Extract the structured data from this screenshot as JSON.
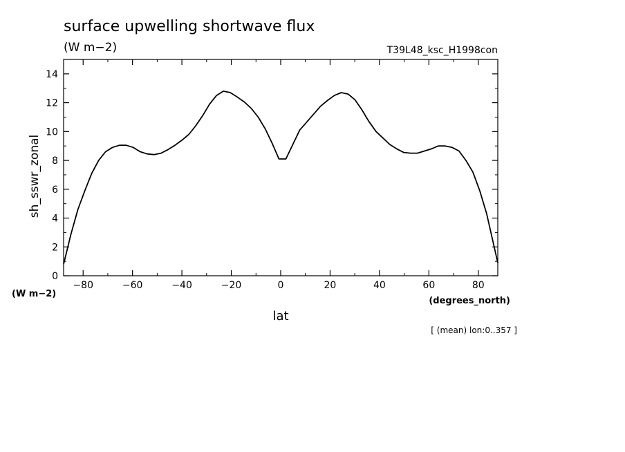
{
  "chart_data": {
    "type": "line",
    "title": "surface upwelling shortwave flux",
    "subtitle": "(W m−2)",
    "run_label": "T39L48_ksc_H1998con",
    "xlabel": "lat",
    "x_units": "(degrees_north)",
    "ylabel": "sh_sswr_zonal",
    "y_units": "(W m−2)",
    "footnote": "[ (mean) lon:0..357 ]",
    "xlim": [
      -87.9,
      87.9
    ],
    "ylim": [
      0,
      15
    ],
    "x_ticks": [
      -80,
      -60,
      -40,
      -20,
      0,
      20,
      40,
      60,
      80
    ],
    "x_tick_labels": [
      "−80",
      "−60",
      "−40",
      "−20",
      "0",
      "20",
      "40",
      "60",
      "80"
    ],
    "y_ticks": [
      0,
      2,
      4,
      6,
      8,
      10,
      12,
      14
    ],
    "y_tick_labels": [
      "0",
      "2",
      "4",
      "6",
      "8",
      "10",
      "12",
      "14"
    ],
    "grid": false,
    "series": [
      {
        "x": [
          -87.9,
          -84.9,
          -82.1,
          -79.3,
          -76.5,
          -73.7,
          -70.9,
          -68.1,
          -65.3,
          -62.5,
          -59.7,
          -56.9,
          -54.1,
          -51.3,
          -48.4,
          -45.6,
          -42.8,
          -40.0,
          -37.2,
          -34.4,
          -31.6,
          -28.8,
          -26.0,
          -23.2,
          -20.4,
          -17.6,
          -14.7,
          -11.9,
          -9.1,
          -6.3,
          -3.5,
          -0.7,
          2.1,
          4.9,
          7.7,
          10.5,
          13.3,
          16.1,
          18.9,
          21.7,
          24.5,
          27.3,
          30.1,
          32.9,
          35.7,
          38.6,
          41.4,
          44.2,
          47.0,
          49.8,
          52.6,
          55.4,
          58.2,
          61.0,
          63.8,
          66.6,
          69.4,
          72.2,
          75.0,
          77.8,
          80.6,
          83.4,
          87.9
        ],
        "y": [
          0.8,
          2.9,
          4.6,
          5.9,
          7.1,
          8.0,
          8.6,
          8.9,
          9.05,
          9.05,
          8.9,
          8.6,
          8.45,
          8.4,
          8.5,
          8.75,
          9.05,
          9.4,
          9.8,
          10.4,
          11.1,
          11.9,
          12.5,
          12.8,
          12.7,
          12.4,
          12.05,
          11.6,
          11.0,
          10.2,
          9.2,
          8.1,
          8.1,
          9.1,
          10.1,
          10.65,
          11.2,
          11.75,
          12.15,
          12.5,
          12.7,
          12.6,
          12.2,
          11.5,
          10.7,
          10.0,
          9.55,
          9.1,
          8.8,
          8.55,
          8.5,
          8.5,
          8.65,
          8.8,
          9.0,
          9.0,
          8.9,
          8.65,
          8.0,
          7.2,
          5.9,
          4.3,
          0.9
        ]
      }
    ]
  }
}
